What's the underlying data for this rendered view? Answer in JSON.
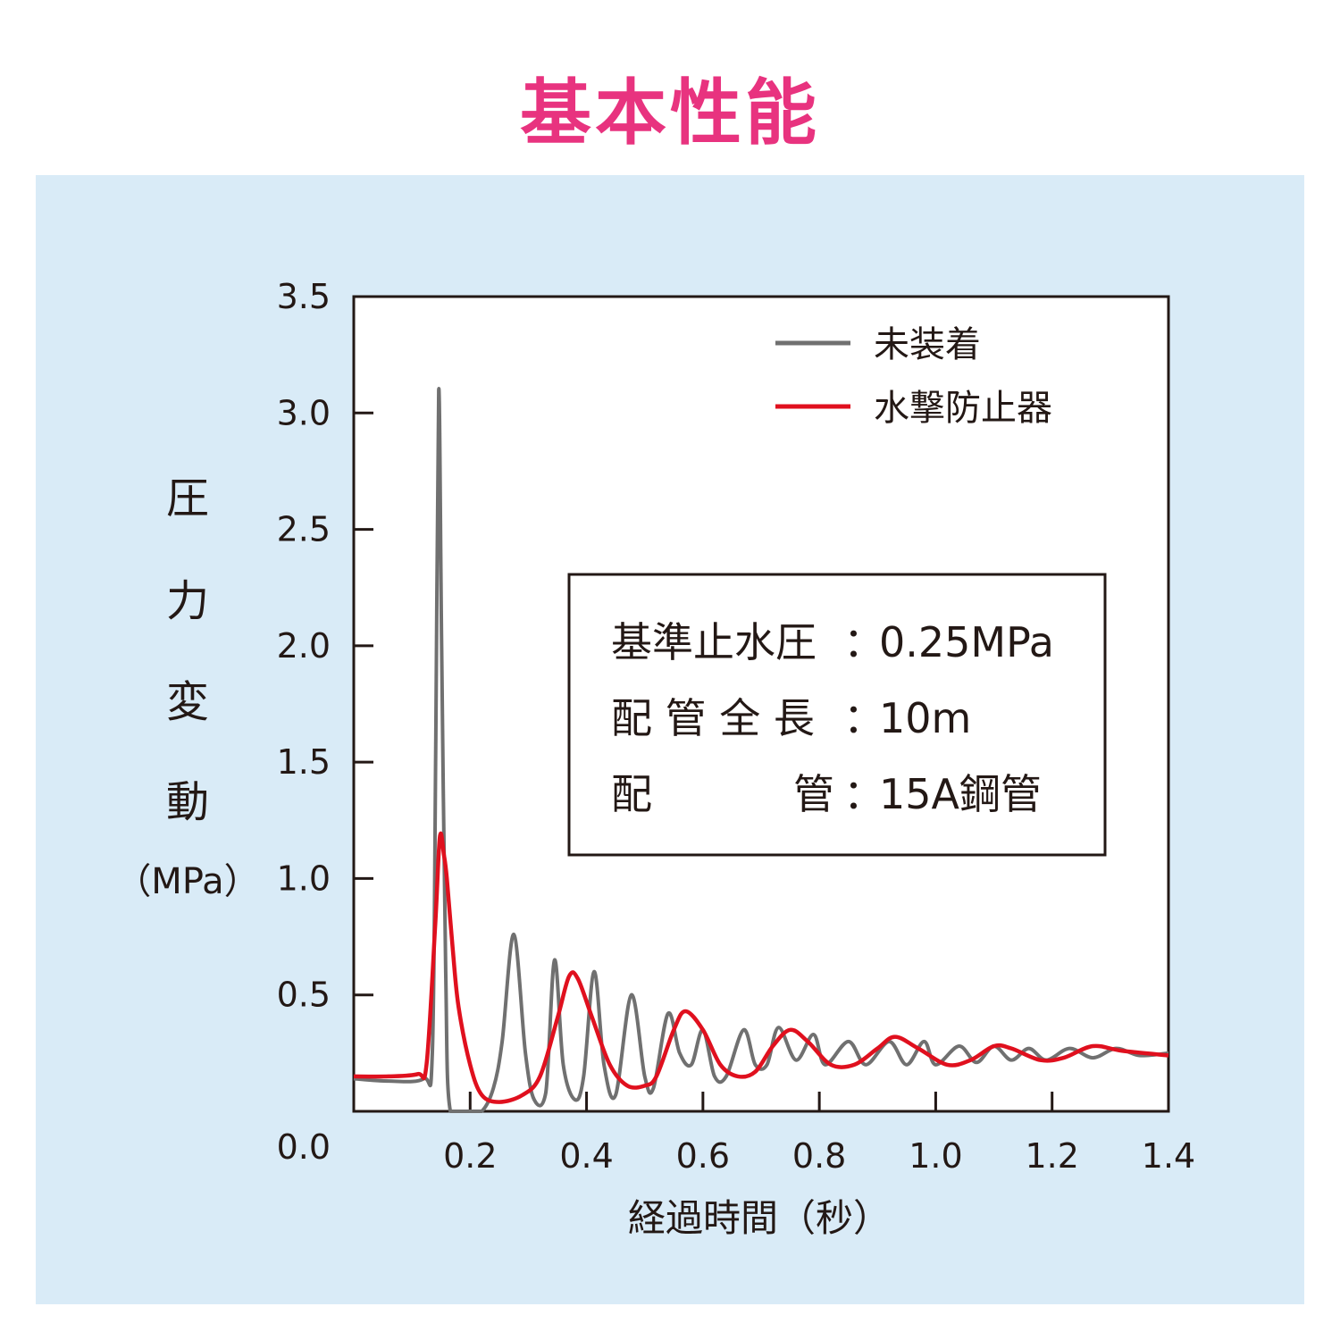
{
  "title": "基本性能",
  "colors": {
    "title": "#e8337f",
    "panel": "#d9ebf7",
    "series_untreated": "#707070",
    "series_arrester": "#e0101e"
  },
  "chart_data": {
    "type": "line",
    "title": "基本性能",
    "xlabel": "経過時間（秒）",
    "ylabel_chars": [
      "圧",
      "力",
      "変",
      "動"
    ],
    "ylabel_unit": "（MPa）",
    "xlim": [
      0,
      1.4
    ],
    "ylim": [
      0,
      3.5
    ],
    "xticks": [
      0.2,
      0.4,
      0.6,
      0.8,
      1.0,
      1.2,
      1.4
    ],
    "xtick_labels": [
      "0.2",
      "0.4",
      "0.6",
      "0.8",
      "1.0",
      "1.2",
      "1.4"
    ],
    "yticks": [
      0,
      0.5,
      1.0,
      1.5,
      2.0,
      2.5,
      3.0,
      3.5
    ],
    "ytick_labels": [
      "0.0",
      "0.5",
      "1.0",
      "1.5",
      "2.0",
      "2.5",
      "3.0",
      "3.5"
    ],
    "grid": false,
    "legend_position": "top-right",
    "series": [
      {
        "name": "未装着",
        "color": "#707070",
        "x": [
          0,
          0.06,
          0.12,
          0.135,
          0.141,
          0.146,
          0.151,
          0.158,
          0.166,
          0.2,
          0.22,
          0.24,
          0.255,
          0.275,
          0.295,
          0.31,
          0.33,
          0.345,
          0.36,
          0.38,
          0.395,
          0.413,
          0.43,
          0.45,
          0.477,
          0.5,
          0.515,
          0.54,
          0.56,
          0.58,
          0.6,
          0.62,
          0.64,
          0.67,
          0.69,
          0.71,
          0.73,
          0.76,
          0.79,
          0.81,
          0.85,
          0.88,
          0.92,
          0.95,
          0.98,
          1.0,
          1.04,
          1.07,
          1.1,
          1.13,
          1.16,
          1.19,
          1.23,
          1.27,
          1.31,
          1.35,
          1.4
        ],
        "y": [
          0.14,
          0.13,
          0.14,
          0.25,
          1.6,
          3.1,
          2.0,
          0.6,
          0.0,
          0.0,
          0.0,
          0.1,
          0.3,
          0.76,
          0.25,
          0.05,
          0.08,
          0.65,
          0.2,
          0.05,
          0.15,
          0.6,
          0.2,
          0.07,
          0.5,
          0.15,
          0.1,
          0.42,
          0.25,
          0.2,
          0.35,
          0.15,
          0.15,
          0.35,
          0.2,
          0.2,
          0.36,
          0.22,
          0.33,
          0.2,
          0.3,
          0.2,
          0.3,
          0.2,
          0.3,
          0.2,
          0.28,
          0.21,
          0.28,
          0.22,
          0.27,
          0.22,
          0.27,
          0.23,
          0.27,
          0.24,
          0.25
        ]
      },
      {
        "name": "水撃防止器",
        "color": "#e0101e",
        "x": [
          0,
          0.06,
          0.11,
          0.125,
          0.14,
          0.148,
          0.155,
          0.16,
          0.17,
          0.18,
          0.2,
          0.22,
          0.25,
          0.29,
          0.32,
          0.35,
          0.37,
          0.385,
          0.41,
          0.44,
          0.47,
          0.5,
          0.52,
          0.55,
          0.57,
          0.6,
          0.63,
          0.66,
          0.69,
          0.72,
          0.75,
          0.78,
          0.82,
          0.86,
          0.9,
          0.93,
          0.97,
          1.02,
          1.06,
          1.1,
          1.13,
          1.18,
          1.22,
          1.27,
          1.32,
          1.4
        ],
        "y": [
          0.15,
          0.15,
          0.16,
          0.2,
          0.8,
          1.18,
          1.1,
          1.0,
          0.7,
          0.45,
          0.2,
          0.07,
          0.04,
          0.07,
          0.15,
          0.4,
          0.58,
          0.57,
          0.4,
          0.2,
          0.11,
          0.11,
          0.15,
          0.35,
          0.43,
          0.35,
          0.2,
          0.15,
          0.17,
          0.28,
          0.35,
          0.3,
          0.2,
          0.2,
          0.27,
          0.32,
          0.27,
          0.2,
          0.22,
          0.28,
          0.27,
          0.22,
          0.23,
          0.28,
          0.26,
          0.24
        ]
      }
    ],
    "annotation": {
      "rows": [
        {
          "label": "基準止水圧",
          "sep": "：",
          "value": "0.25MPa"
        },
        {
          "label": "配 管 全 長",
          "sep": "：",
          "value": "10m"
        },
        {
          "label_left": "配",
          "label_right": "管",
          "sep": "：",
          "value": "15A鋼管"
        }
      ]
    }
  }
}
